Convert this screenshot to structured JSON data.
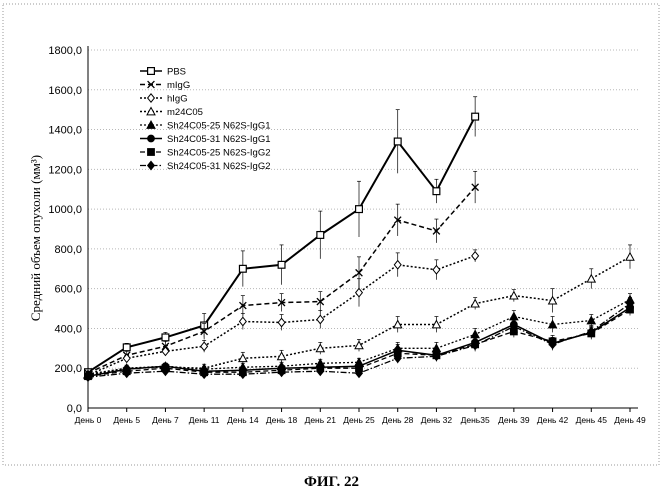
{
  "caption": "ФИГ. 22",
  "chart_data": {
    "type": "line",
    "title": "",
    "xlabel": "",
    "ylabel": "Средний объем опухоли (мм³)",
    "categories": [
      "День 0",
      "День 5",
      "День 7",
      "День 11",
      "День 14",
      "День 18",
      "День 21",
      "День 25",
      "День 28",
      "День 32",
      "День35",
      "День 39",
      "День 42",
      "День 45",
      "День 49"
    ],
    "ylim": [
      0,
      1800
    ],
    "yticks": [
      "0,0",
      "200,0",
      "400,0",
      "600,0",
      "800,0",
      "1000,0",
      "1200,0",
      "1400,0",
      "1600,0",
      "1800,0"
    ],
    "grid": true,
    "legend_position": "top-left",
    "series": [
      {
        "name": "PBS",
        "marker": "square-open",
        "dash": "solid",
        "width": 2,
        "values": [
          180,
          305,
          355,
          415,
          700,
          720,
          870,
          1000,
          1340,
          1090,
          1465,
          null,
          null,
          null,
          null
        ],
        "errors": [
          15,
          20,
          25,
          60,
          90,
          100,
          120,
          140,
          160,
          60,
          100,
          null,
          null,
          null,
          null
        ]
      },
      {
        "name": "mIgG",
        "marker": "x",
        "dash": "dash",
        "width": 1.5,
        "values": [
          175,
          265,
          310,
          385,
          515,
          530,
          535,
          680,
          945,
          890,
          1110,
          null,
          null,
          null,
          null
        ],
        "errors": [
          10,
          20,
          25,
          40,
          50,
          45,
          50,
          80,
          80,
          60,
          80,
          null,
          null,
          null,
          null
        ]
      },
      {
        "name": "hIgG",
        "marker": "diamond-open",
        "dash": "dot",
        "width": 1.5,
        "values": [
          165,
          250,
          285,
          310,
          435,
          430,
          445,
          580,
          720,
          695,
          765,
          null,
          null,
          null,
          null
        ],
        "errors": [
          10,
          15,
          20,
          30,
          40,
          40,
          45,
          70,
          60,
          50,
          30,
          null,
          null,
          null,
          null
        ]
      },
      {
        "name": "m24C05",
        "marker": "triangle-open",
        "dash": "dot",
        "width": 1.5,
        "values": [
          170,
          200,
          205,
          200,
          250,
          260,
          300,
          315,
          420,
          420,
          525,
          565,
          540,
          650,
          760
        ],
        "errors": [
          10,
          15,
          15,
          20,
          30,
          30,
          30,
          30,
          40,
          40,
          30,
          30,
          60,
          50,
          60
        ]
      },
      {
        "name": "Sh24C05-25 N62S-IgG1",
        "marker": "triangle",
        "dash": "dot",
        "width": 1.3,
        "values": [
          165,
          200,
          210,
          195,
          205,
          210,
          225,
          230,
          300,
          300,
          370,
          460,
          420,
          440,
          545
        ],
        "errors": [
          10,
          15,
          15,
          15,
          20,
          20,
          20,
          20,
          30,
          30,
          30,
          30,
          40,
          30,
          30
        ]
      },
      {
        "name": "Sh24C05-31 N62S-IgG1",
        "marker": "circle",
        "dash": "solid",
        "width": 1.5,
        "values": [
          160,
          195,
          210,
          185,
          190,
          200,
          205,
          210,
          290,
          265,
          330,
          420,
          325,
          380,
          505
        ],
        "errors": [
          10,
          15,
          15,
          15,
          20,
          20,
          20,
          20,
          30,
          30,
          30,
          30,
          30,
          30,
          30
        ]
      },
      {
        "name": "Sh24C05-25 N62S-IgG2",
        "marker": "square",
        "dash": "dash",
        "width": 1.3,
        "values": [
          160,
          185,
          200,
          180,
          180,
          190,
          200,
          200,
          275,
          265,
          320,
          385,
          335,
          375,
          495
        ],
        "errors": [
          10,
          10,
          15,
          15,
          15,
          15,
          20,
          20,
          30,
          30,
          30,
          30,
          30,
          30,
          30
        ]
      },
      {
        "name": "Sh24C05-31 N62S-IgG2",
        "marker": "diamond",
        "dash": "dashdot",
        "width": 1.3,
        "values": [
          155,
          175,
          185,
          170,
          170,
          180,
          185,
          175,
          250,
          260,
          315,
          410,
          320,
          385,
          525
        ],
        "errors": [
          10,
          10,
          10,
          15,
          15,
          15,
          15,
          15,
          25,
          25,
          30,
          30,
          30,
          30,
          30
        ]
      }
    ]
  }
}
